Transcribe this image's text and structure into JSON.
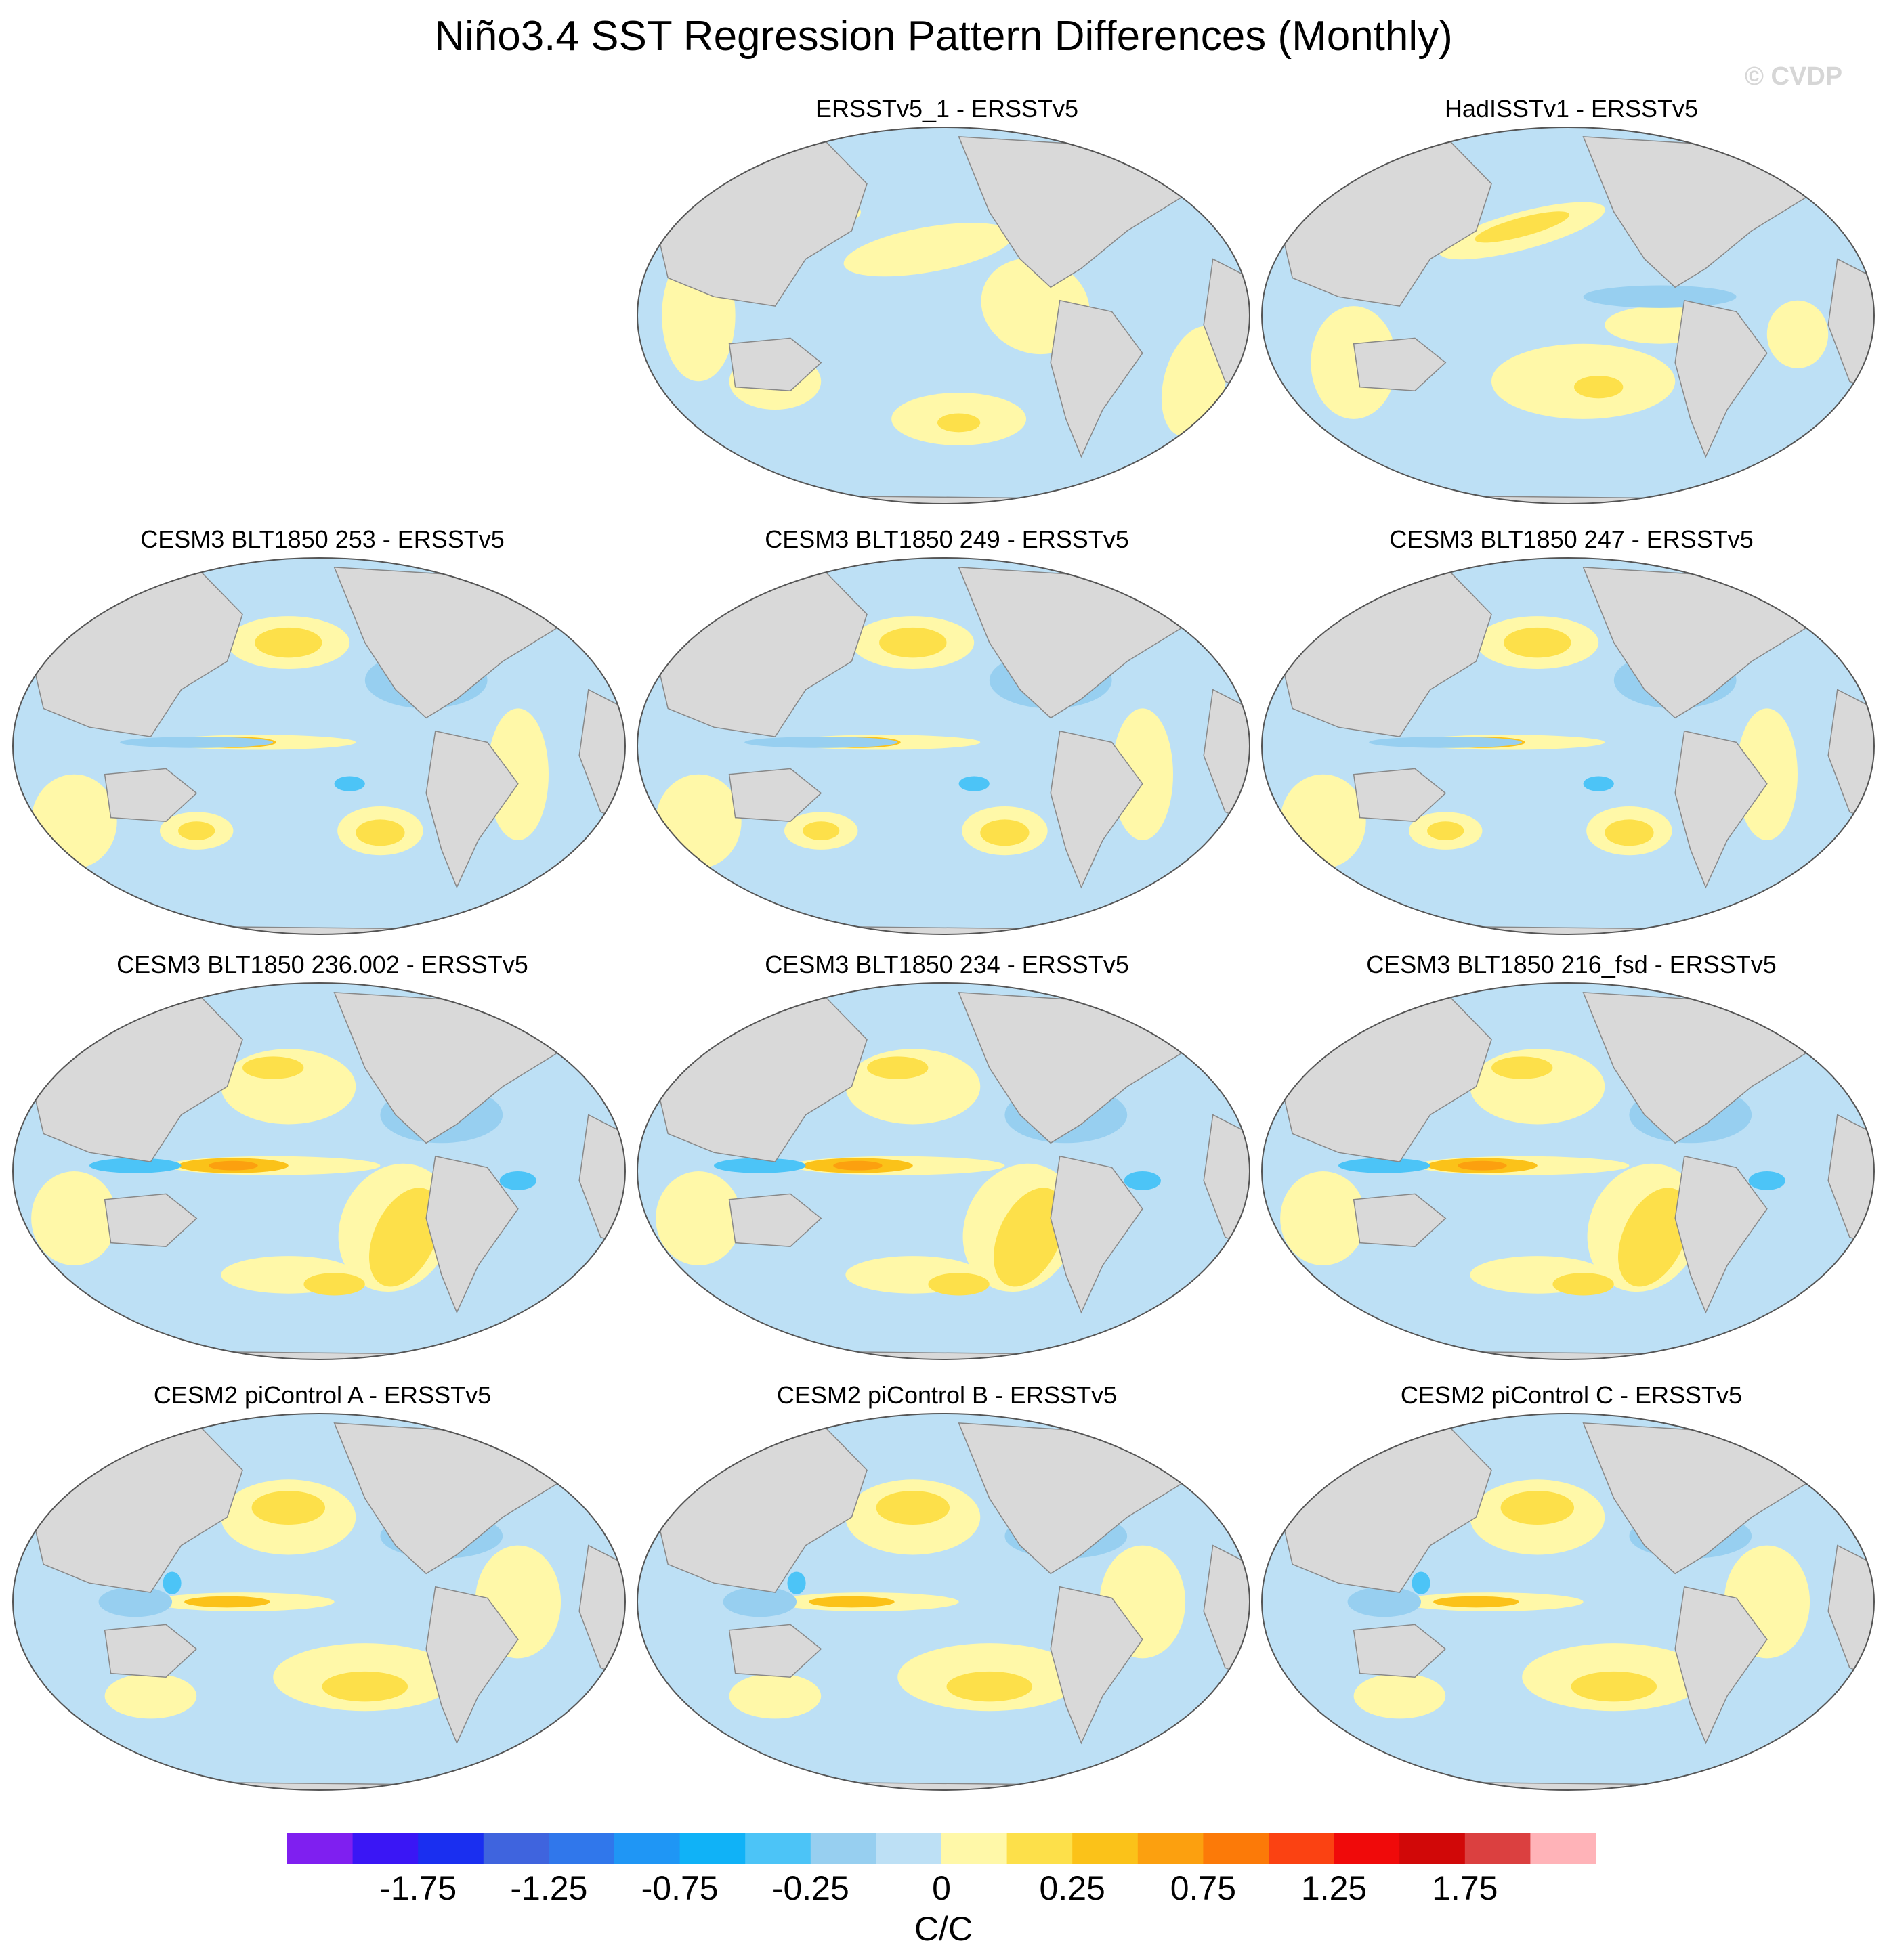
{
  "title": "Niño3.4 SST Regression Pattern Differences (Monthly)",
  "watermark": "© CVDP",
  "panels": [
    {
      "label": "ERSSTv5_1 - ERSSTv5",
      "row": 0,
      "col": 1,
      "variant": 0
    },
    {
      "label": "HadISSTv1 - ERSSTv5",
      "row": 0,
      "col": 2,
      "variant": 1
    },
    {
      "label": "CESM3 BLT1850 253 - ERSSTv5",
      "row": 1,
      "col": 0,
      "variant": 2
    },
    {
      "label": "CESM3 BLT1850 249 - ERSSTv5",
      "row": 1,
      "col": 1,
      "variant": 2
    },
    {
      "label": "CESM3 BLT1850 247 - ERSSTv5",
      "row": 1,
      "col": 2,
      "variant": 2
    },
    {
      "label": "CESM3 BLT1850 236.002 - ERSSTv5",
      "row": 2,
      "col": 0,
      "variant": 3
    },
    {
      "label": "CESM3 BLT1850 234 - ERSSTv5",
      "row": 2,
      "col": 1,
      "variant": 3
    },
    {
      "label": "CESM3 BLT1850 216_fsd - ERSSTv5",
      "row": 2,
      "col": 2,
      "variant": 3
    },
    {
      "label": "CESM2 piControl A - ERSSTv5",
      "row": 3,
      "col": 0,
      "variant": 4
    },
    {
      "label": "CESM2 piControl B - ERSSTv5",
      "row": 3,
      "col": 1,
      "variant": 4
    },
    {
      "label": "CESM2 piControl C - ERSSTv5",
      "row": 3,
      "col": 2,
      "variant": 4
    }
  ],
  "colorbar": {
    "colors": [
      "#7f1ff0",
      "#3a16f5",
      "#1a2ff0",
      "#3f64de",
      "#3077eb",
      "#1f96f5",
      "#10b2f7",
      "#4cc4f7",
      "#97cff0",
      "#bde0f5",
      "#fff8a8",
      "#fde04a",
      "#fbc219",
      "#fca00f",
      "#fc7a08",
      "#fb4212",
      "#f00a0a",
      "#d10808",
      "#db4040",
      "#ffb3b8"
    ],
    "tick_labels": [
      "-1.75",
      "-1.25",
      "-0.75",
      "-0.25",
      "0",
      "0.25",
      "0.75",
      "1.25",
      "1.75"
    ],
    "unit": "C/C"
  },
  "palette": {
    "neg_weak": "#bde0f5",
    "neg_mid": "#97cff0",
    "neg_strong": "#4cc4f7",
    "pos_weak": "#fff8a8",
    "pos_mid": "#fde04a",
    "pos_strong": "#fbc219",
    "pos_vstrong": "#fca00f",
    "land": "#d9d9d9",
    "coast": "#888888"
  }
}
